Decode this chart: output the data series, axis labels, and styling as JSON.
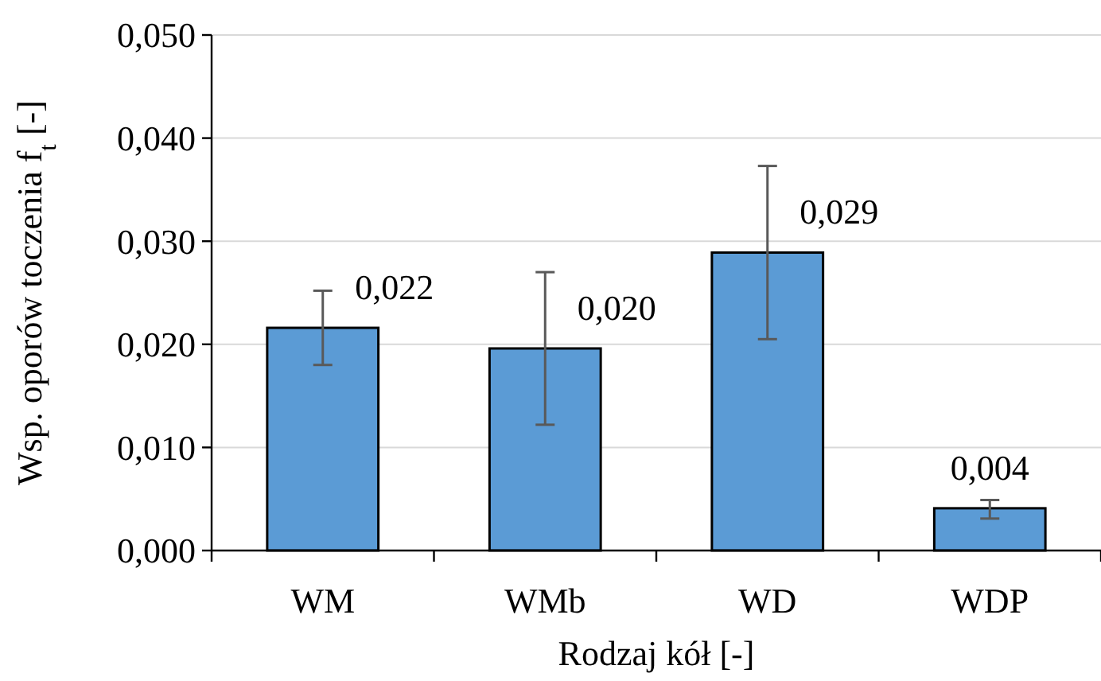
{
  "chart_data": {
    "type": "bar",
    "xlabel": "Rodzaj kół [-]",
    "ylabel": "Wsp. oporów toczenia f$_{t}$ [-]",
    "categories": [
      "WM",
      "WMb",
      "WD",
      "WDP"
    ],
    "values": [
      0.0216,
      0.0196,
      0.0289,
      0.0041
    ],
    "value_labels": [
      "0,022",
      "0,020",
      "0,029",
      "0,004"
    ],
    "errors": [
      [
        0.018,
        0.0252
      ],
      [
        0.0122,
        0.027
      ],
      [
        0.0205,
        0.0373
      ],
      [
        0.0031,
        0.0049
      ]
    ],
    "color": "#5b9bd5",
    "ylim": [
      0,
      0.05
    ],
    "yticks": [
      {
        "value": 0,
        "label": "0,000"
      },
      {
        "value": 0.01,
        "label": "0,010"
      },
      {
        "value": 0.02,
        "label": "0,020"
      },
      {
        "value": 0.03,
        "label": "0,030"
      },
      {
        "value": 0.04,
        "label": "0,040"
      },
      {
        "value": 0.05,
        "label": "0,050"
      }
    ],
    "grid": "y"
  }
}
